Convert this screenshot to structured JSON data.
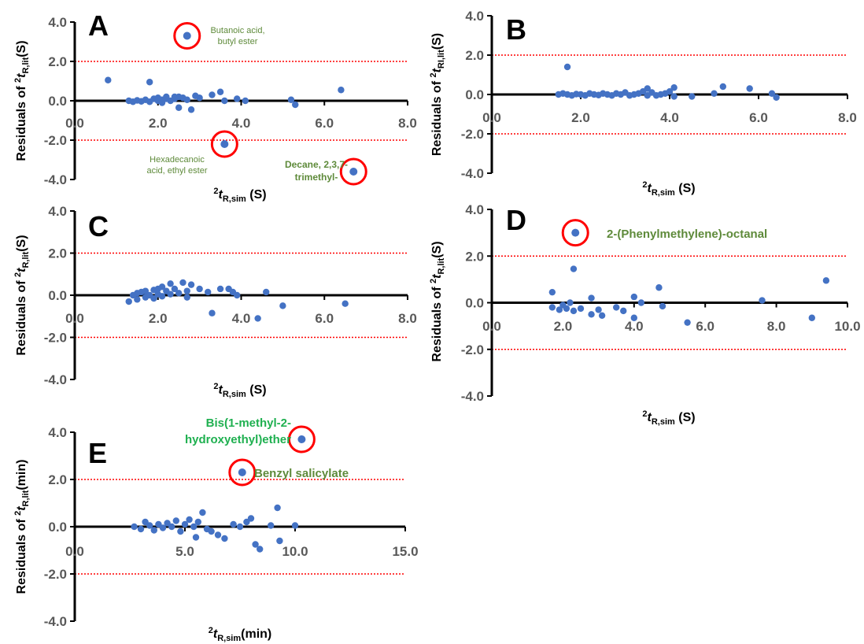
{
  "colors": {
    "point": "#4472c4",
    "threshold": "#ff0000",
    "circle": "#ff0000",
    "axis": "#000000"
  },
  "chart_data": [
    {
      "panel": "A",
      "type": "scatter",
      "xlabel": {
        "main": "t",
        "sup": "2",
        "sub": "R,sim",
        "unit": " (S)"
      },
      "ylabel": {
        "prefix": "Residuals of ",
        "sup": "2",
        "main": "t",
        "sub": "R,lit",
        "unit": "(S)"
      },
      "xticks": [
        "0.0",
        "2.0",
        "4.0",
        "6.0",
        "8.0"
      ],
      "yticks": [
        "4.0",
        "2.0",
        "0.0",
        "-2.0",
        "-4.0"
      ],
      "xlim": [
        0,
        8
      ],
      "ylim": [
        -4,
        4
      ],
      "thresholds": [
        2,
        -2
      ],
      "points": [
        [
          0.8,
          1.05
        ],
        [
          1.3,
          0.0
        ],
        [
          1.4,
          -0.05
        ],
        [
          1.5,
          0.02
        ],
        [
          1.6,
          -0.03
        ],
        [
          1.7,
          0.05
        ],
        [
          1.8,
          0.95
        ],
        [
          1.8,
          -0.05
        ],
        [
          1.9,
          0.1
        ],
        [
          2.0,
          0.0
        ],
        [
          2.0,
          0.15
        ],
        [
          2.1,
          0.05
        ],
        [
          2.1,
          -0.1
        ],
        [
          2.2,
          0.1
        ],
        [
          2.2,
          0.2
        ],
        [
          2.3,
          0.0
        ],
        [
          2.4,
          0.1
        ],
        [
          2.4,
          0.2
        ],
        [
          2.5,
          -0.35
        ],
        [
          2.5,
          0.2
        ],
        [
          2.6,
          0.15
        ],
        [
          2.7,
          0.05
        ],
        [
          2.8,
          -0.45
        ],
        [
          2.9,
          0.25
        ],
        [
          3.0,
          0.15
        ],
        [
          3.3,
          0.3
        ],
        [
          3.5,
          0.45
        ],
        [
          3.6,
          0.0
        ],
        [
          3.9,
          0.1
        ],
        [
          4.1,
          0.0
        ],
        [
          5.2,
          0.05
        ],
        [
          5.3,
          -0.2
        ],
        [
          6.4,
          0.55
        ]
      ],
      "annotations": [
        {
          "x": 2.7,
          "y": 3.3,
          "lines": [
            "Butanoic acid,",
            "butyl ester"
          ]
        },
        {
          "x": 3.6,
          "y": -2.2,
          "lines": [
            "Hexadecanoic",
            "acid, ethyl ester"
          ]
        },
        {
          "x": 6.7,
          "y": -3.6,
          "lines": [
            "Decane, 2,3,7-",
            "trimethyl-"
          ]
        }
      ]
    },
    {
      "panel": "B",
      "type": "scatter",
      "xlabel": {
        "main": "t",
        "sup": "2",
        "sub": "R,sim",
        "unit": " (S)"
      },
      "ylabel": {
        "prefix": "Residuals of ",
        "sup": "2",
        "main": "t",
        "sub": "RI,lit",
        "unit": "(S)"
      },
      "xticks": [
        "0.0",
        "2.0",
        "4.0",
        "6.0",
        "8.0"
      ],
      "yticks": [
        "4.0",
        "2.0",
        "0.0",
        "-2.0",
        "-4.0"
      ],
      "xlim": [
        0,
        8
      ],
      "ylim": [
        -4,
        4
      ],
      "thresholds": [
        2,
        -2
      ],
      "points": [
        [
          1.5,
          0.0
        ],
        [
          1.6,
          0.05
        ],
        [
          1.7,
          1.4
        ],
        [
          1.7,
          0.0
        ],
        [
          1.8,
          -0.05
        ],
        [
          1.9,
          0.02
        ],
        [
          2.0,
          0.0
        ],
        [
          2.1,
          -0.05
        ],
        [
          2.2,
          0.05
        ],
        [
          2.3,
          0.0
        ],
        [
          2.4,
          -0.03
        ],
        [
          2.5,
          0.05
        ],
        [
          2.6,
          0.0
        ],
        [
          2.7,
          -0.05
        ],
        [
          2.8,
          0.05
        ],
        [
          2.9,
          0.0
        ],
        [
          3.0,
          0.1
        ],
        [
          3.1,
          -0.05
        ],
        [
          3.2,
          0.0
        ],
        [
          3.3,
          0.05
        ],
        [
          3.4,
          0.15
        ],
        [
          3.5,
          0.3
        ],
        [
          3.5,
          -0.05
        ],
        [
          3.6,
          0.1
        ],
        [
          3.7,
          -0.05
        ],
        [
          3.8,
          0.0
        ],
        [
          3.9,
          0.05
        ],
        [
          4.0,
          0.15
        ],
        [
          4.1,
          0.35
        ],
        [
          4.1,
          -0.1
        ],
        [
          4.5,
          -0.1
        ],
        [
          5.0,
          0.05
        ],
        [
          5.2,
          0.4
        ],
        [
          5.8,
          0.3
        ],
        [
          6.3,
          0.05
        ],
        [
          6.4,
          -0.15
        ]
      ],
      "annotations": []
    },
    {
      "panel": "C",
      "type": "scatter",
      "xlabel": {
        "main": "t",
        "sup": "2",
        "sub": "R,sim",
        "unit": " (S)"
      },
      "ylabel": {
        "prefix": "Residuals of ",
        "sup": "2",
        "main": "t",
        "sub": "R,lit",
        "unit": "(S)"
      },
      "xticks": [
        "0.0",
        "2.0",
        "4.0",
        "6.0",
        "8.0"
      ],
      "yticks": [
        "4.0",
        "2.0",
        "0.0",
        "-2.0",
        "-4.0"
      ],
      "xlim": [
        0,
        8
      ],
      "ylim": [
        -4,
        4
      ],
      "thresholds": [
        2,
        -2
      ],
      "points": [
        [
          1.3,
          -0.3
        ],
        [
          1.4,
          0.0
        ],
        [
          1.5,
          0.1
        ],
        [
          1.5,
          -0.2
        ],
        [
          1.6,
          0.15
        ],
        [
          1.7,
          -0.1
        ],
        [
          1.7,
          0.2
        ],
        [
          1.8,
          0.0
        ],
        [
          1.9,
          0.25
        ],
        [
          1.9,
          -0.15
        ],
        [
          2.0,
          0.3
        ],
        [
          2.0,
          0.05
        ],
        [
          2.1,
          -0.05
        ],
        [
          2.1,
          0.4
        ],
        [
          2.2,
          0.2
        ],
        [
          2.3,
          0.55
        ],
        [
          2.3,
          0.05
        ],
        [
          2.4,
          0.3
        ],
        [
          2.5,
          0.1
        ],
        [
          2.6,
          0.6
        ],
        [
          2.7,
          0.2
        ],
        [
          2.7,
          -0.1
        ],
        [
          2.8,
          0.5
        ],
        [
          3.0,
          0.3
        ],
        [
          3.2,
          0.15
        ],
        [
          3.3,
          -0.85
        ],
        [
          3.5,
          0.3
        ],
        [
          3.7,
          0.3
        ],
        [
          3.8,
          0.15
        ],
        [
          3.9,
          0.0
        ],
        [
          4.4,
          -1.1
        ],
        [
          4.6,
          0.15
        ],
        [
          5.0,
          -0.5
        ],
        [
          6.5,
          -0.4
        ]
      ],
      "annotations": []
    },
    {
      "panel": "D",
      "type": "scatter",
      "xlabel": {
        "main": "t",
        "sup": "2",
        "sub": "R,sim",
        "unit": " (S)"
      },
      "ylabel": {
        "prefix": "Residuals of ",
        "sup": "2",
        "main": "t",
        "sub": "R,lit",
        "unit": "(S)"
      },
      "xticks": [
        "0.0",
        "2.0",
        "4.0",
        "6.0",
        "8.0",
        "10.0"
      ],
      "yticks": [
        "4.0",
        "2.0",
        "0.0",
        "-2.0",
        "-4.0"
      ],
      "xlim": [
        0,
        10
      ],
      "ylim": [
        -4,
        4
      ],
      "thresholds": [
        2,
        -2
      ],
      "points": [
        [
          1.7,
          0.45
        ],
        [
          1.7,
          -0.2
        ],
        [
          1.9,
          -0.3
        ],
        [
          2.0,
          -0.1
        ],
        [
          2.1,
          -0.25
        ],
        [
          2.2,
          0.0
        ],
        [
          2.3,
          1.45
        ],
        [
          2.3,
          -0.35
        ],
        [
          2.5,
          -0.25
        ],
        [
          2.8,
          0.2
        ],
        [
          2.8,
          -0.5
        ],
        [
          3.0,
          -0.3
        ],
        [
          3.1,
          -0.55
        ],
        [
          3.5,
          -0.2
        ],
        [
          3.7,
          -0.35
        ],
        [
          4.0,
          -0.65
        ],
        [
          4.0,
          0.25
        ],
        [
          4.2,
          0.0
        ],
        [
          4.7,
          0.65
        ],
        [
          4.8,
          -0.15
        ],
        [
          5.5,
          -0.85
        ],
        [
          7.6,
          0.1
        ],
        [
          9.0,
          -0.65
        ],
        [
          9.4,
          0.95
        ]
      ],
      "annotations": [
        {
          "x": 2.35,
          "y": 3.0,
          "lines": [
            "2-(Phenylmethylene)-octanal"
          ]
        }
      ]
    },
    {
      "panel": "E",
      "type": "scatter",
      "xlabel": {
        "main": "t",
        "sup": "2",
        "sub": "R,sim",
        "unit": "(min)"
      },
      "ylabel": {
        "prefix": "Residuals of ",
        "sup": "2",
        "main": "t",
        "sub": "R,lit",
        "unit": "(min)"
      },
      "xticks": [
        "0.0",
        "5.0",
        "10.0",
        "15.0"
      ],
      "yticks": [
        "4.0",
        "2.0",
        "0.0",
        "-2.0",
        "-4.0"
      ],
      "xlim": [
        0,
        15
      ],
      "ylim": [
        -4,
        4
      ],
      "thresholds": [
        2,
        -2
      ],
      "points": [
        [
          2.7,
          0.0
        ],
        [
          3.0,
          -0.1
        ],
        [
          3.2,
          0.2
        ],
        [
          3.4,
          0.05
        ],
        [
          3.6,
          -0.15
        ],
        [
          3.8,
          0.1
        ],
        [
          4.0,
          -0.05
        ],
        [
          4.2,
          0.15
        ],
        [
          4.4,
          0.0
        ],
        [
          4.6,
          0.25
        ],
        [
          4.8,
          -0.2
        ],
        [
          5.0,
          0.1
        ],
        [
          5.2,
          0.3
        ],
        [
          5.4,
          0.0
        ],
        [
          5.5,
          -0.45
        ],
        [
          5.6,
          0.2
        ],
        [
          5.8,
          0.6
        ],
        [
          6.0,
          -0.1
        ],
        [
          6.2,
          -0.2
        ],
        [
          6.5,
          -0.35
        ],
        [
          6.8,
          -0.5
        ],
        [
          7.2,
          0.1
        ],
        [
          7.5,
          0.0
        ],
        [
          7.8,
          0.2
        ],
        [
          8.0,
          0.35
        ],
        [
          8.2,
          -0.75
        ],
        [
          8.4,
          -0.95
        ],
        [
          8.9,
          0.05
        ],
        [
          9.2,
          0.8
        ],
        [
          9.3,
          -0.6
        ],
        [
          10.0,
          0.05
        ]
      ],
      "annotations": [
        {
          "x": 10.3,
          "y": 3.7,
          "lines": [
            "Bis(1-methyl-2-",
            "hydroxyethyl)ether"
          ]
        },
        {
          "x": 7.6,
          "y": 2.3,
          "lines": [
            "Benzyl salicylate"
          ]
        }
      ]
    }
  ]
}
